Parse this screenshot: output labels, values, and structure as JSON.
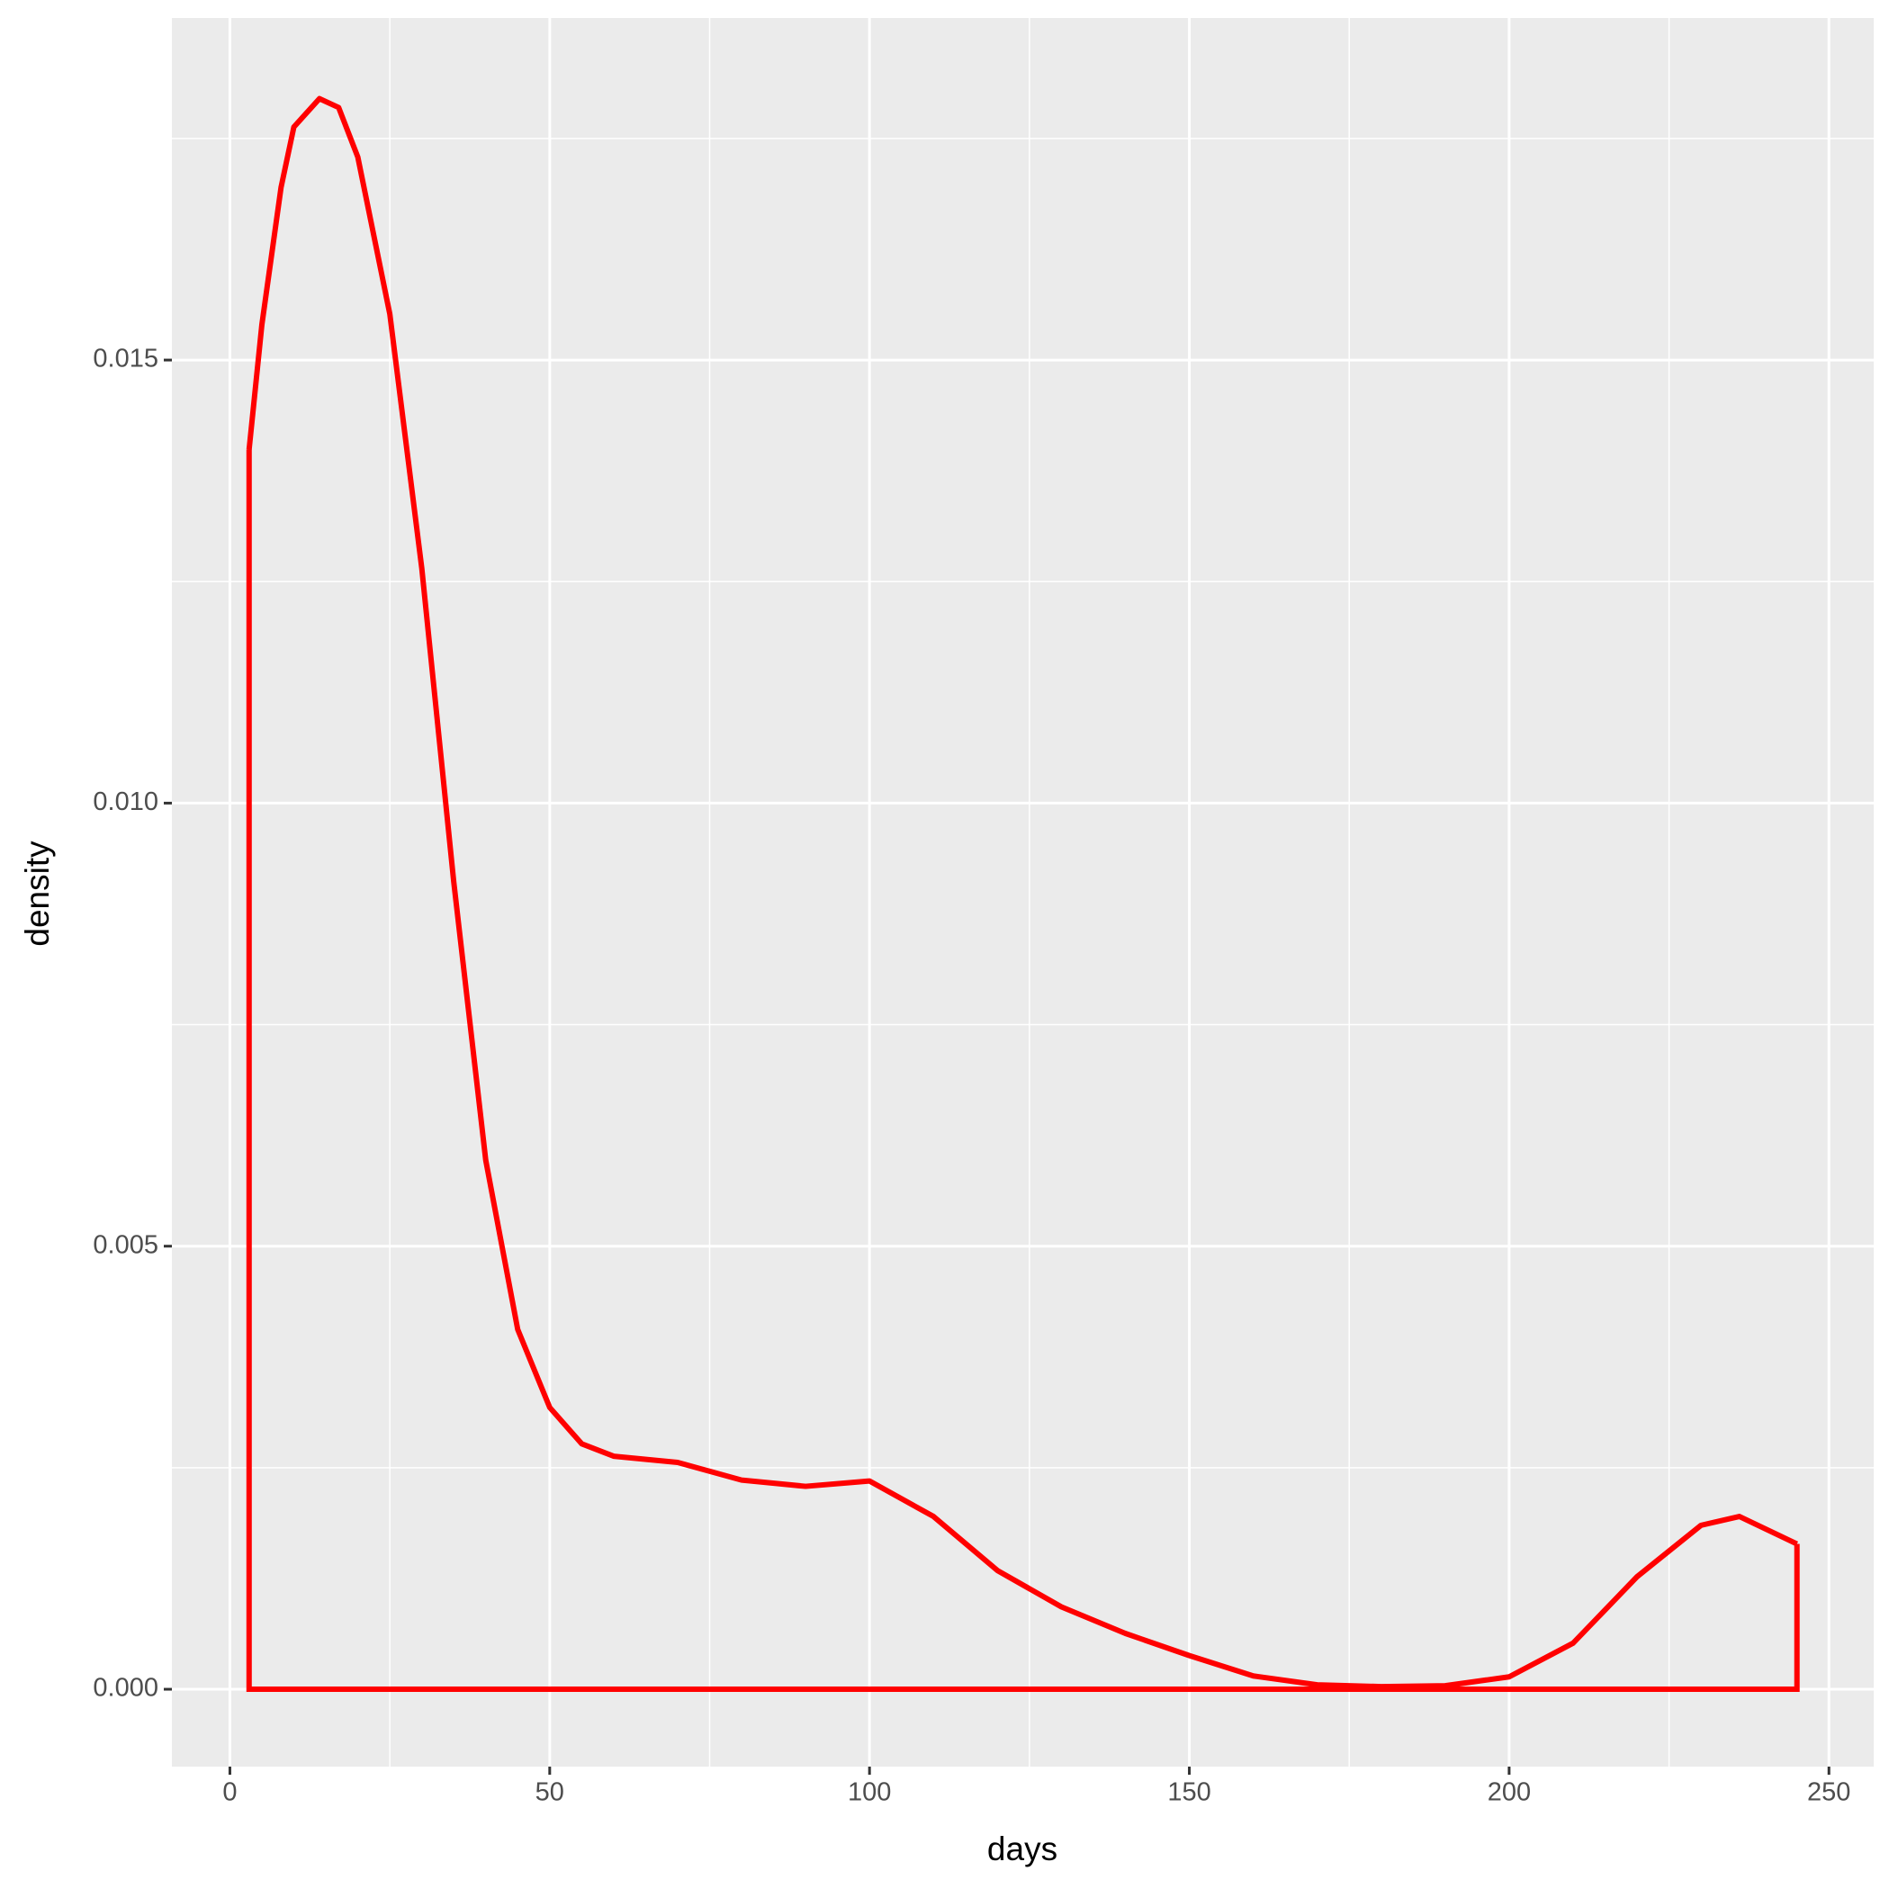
{
  "chart_data": {
    "type": "density",
    "x_label": "days",
    "y_label": "density",
    "x": [
      3,
      5,
      8,
      10,
      14,
      17,
      20,
      25,
      30,
      35,
      40,
      45,
      50,
      55,
      60,
      70,
      80,
      90,
      100,
      110,
      120,
      130,
      140,
      150,
      160,
      170,
      180,
      190,
      200,
      210,
      220,
      230,
      236,
      245
    ],
    "series": [
      {
        "color": "#ff0000",
        "values": [
          0.01399,
          0.0154,
          0.01695,
          0.01763,
          0.01795,
          0.01785,
          0.01729,
          0.01552,
          0.01265,
          0.00911,
          0.00597,
          0.00406,
          0.00318,
          0.00277,
          0.00263,
          0.00256,
          0.00236,
          0.00229,
          0.00235,
          0.00195,
          0.00134,
          0.00093,
          0.00063,
          0.00038,
          0.00015,
          5e-05,
          3e-05,
          4e-05,
          0.00014,
          0.00052,
          0.00127,
          0.00185,
          0.00195,
          0.00164
        ]
      }
    ],
    "xlim": [
      -9.07,
      257.0
    ],
    "ylim": [
      -0.000873,
      0.01886
    ],
    "xticks": [
      0,
      50,
      100,
      150,
      200,
      250
    ],
    "yticks": [
      {
        "value": 0,
        "label": "0.000"
      },
      {
        "value": 0.005,
        "label": "0.005"
      },
      {
        "value": 0.01,
        "label": "0.010"
      },
      {
        "value": 0.015,
        "label": "0.015"
      }
    ],
    "minor_xticks": [
      25,
      75,
      125,
      175,
      225
    ],
    "minor_yticks": [
      0.0025,
      0.0075,
      0.0125,
      0.0175
    ],
    "grid": true
  }
}
